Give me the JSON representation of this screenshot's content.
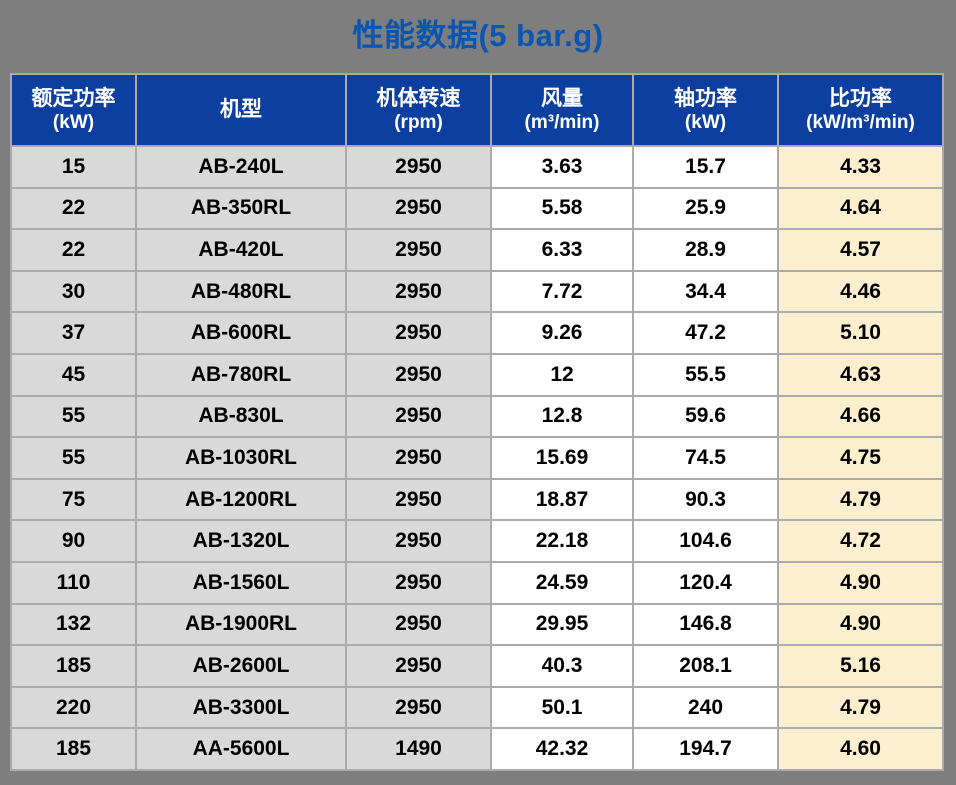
{
  "chart_data": {
    "type": "table",
    "title": "性能数据(5 bar.g)",
    "columns": [
      {
        "label": "额定功率",
        "unit": "(kW)"
      },
      {
        "label": "机型",
        "unit": ""
      },
      {
        "label": "机体转速",
        "unit": "(rpm)"
      },
      {
        "label": "风量",
        "unit": "(m³/min)"
      },
      {
        "label": "轴功率",
        "unit": "(kW)"
      },
      {
        "label": "比功率",
        "unit": "(kW/m³/min)"
      }
    ],
    "rows": [
      [
        "15",
        "AB-240L",
        "2950",
        "3.63",
        "15.7",
        "4.33"
      ],
      [
        "22",
        "AB-350RL",
        "2950",
        "5.58",
        "25.9",
        "4.64"
      ],
      [
        "22",
        "AB-420L",
        "2950",
        "6.33",
        "28.9",
        "4.57"
      ],
      [
        "30",
        "AB-480RL",
        "2950",
        "7.72",
        "34.4",
        "4.46"
      ],
      [
        "37",
        "AB-600RL",
        "2950",
        "9.26",
        "47.2",
        "5.10"
      ],
      [
        "45",
        "AB-780RL",
        "2950",
        "12",
        "55.5",
        "4.63"
      ],
      [
        "55",
        "AB-830L",
        "2950",
        "12.8",
        "59.6",
        "4.66"
      ],
      [
        "55",
        "AB-1030RL",
        "2950",
        "15.69",
        "74.5",
        "4.75"
      ],
      [
        "75",
        "AB-1200RL",
        "2950",
        "18.87",
        "90.3",
        "4.79"
      ],
      [
        "90",
        "AB-1320L",
        "2950",
        "22.18",
        "104.6",
        "4.72"
      ],
      [
        "110",
        "AB-1560L",
        "2950",
        "24.59",
        "120.4",
        "4.90"
      ],
      [
        "132",
        "AB-1900RL",
        "2950",
        "29.95",
        "146.8",
        "4.90"
      ],
      [
        "185",
        "AB-2600L",
        "2950",
        "40.3",
        "208.1",
        "5.16"
      ],
      [
        "220",
        "AB-3300L",
        "2950",
        "50.1",
        "240",
        "4.79"
      ],
      [
        "185",
        "AA-5600L",
        "1490",
        "42.32",
        "194.7",
        "4.60"
      ]
    ]
  },
  "colors": {
    "page_background": "#7E7E7E",
    "title_text": "#0B55B0",
    "header_background": "#0D3FA0",
    "header_text": "#FFFFFF",
    "cell_gray": "#D9D9D9",
    "cell_white": "#FFFFFF",
    "cell_cream": "#FBEFD0",
    "grid_line": "#ABABAB",
    "outer_border": "#C3C3C3",
    "body_text": "#000000"
  }
}
